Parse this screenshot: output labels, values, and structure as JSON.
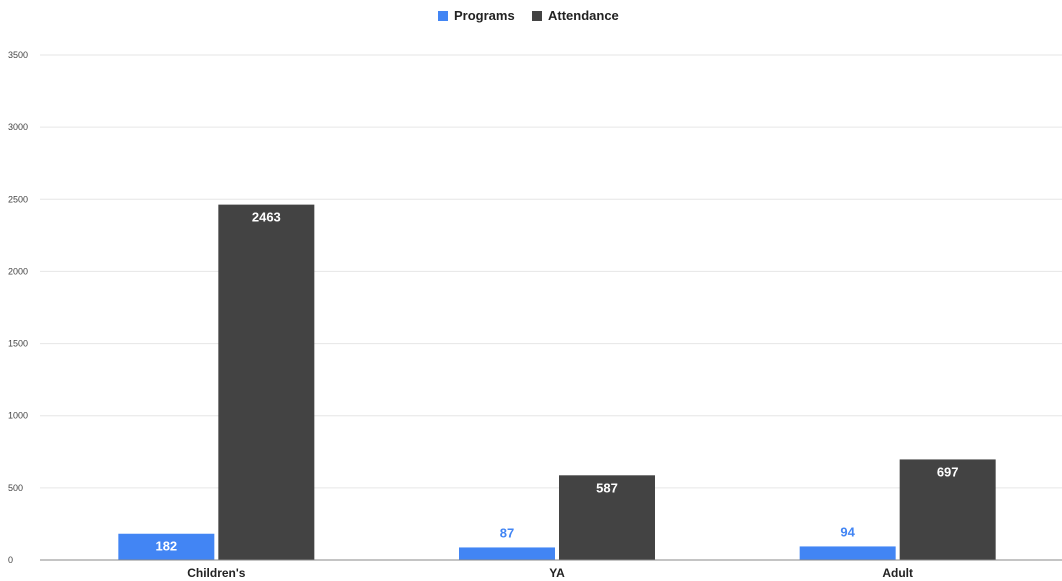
{
  "chart_data": {
    "type": "bar",
    "title": "",
    "xlabel": "",
    "ylabel": "",
    "categories": [
      "Children's",
      "YA",
      "Adult"
    ],
    "series": [
      {
        "name": "Programs",
        "values": [
          182,
          87,
          94
        ],
        "color": "#4285f4"
      },
      {
        "name": "Attendance",
        "values": [
          2463,
          587,
          697
        ],
        "color": "#434343"
      }
    ],
    "ylim": [
      0,
      3500
    ],
    "yticks": [
      0,
      500,
      1000,
      1500,
      2000,
      2500,
      3000,
      3500
    ],
    "grid": true,
    "legend_position": "top-center",
    "colors": {
      "grid": "#e6e6e6",
      "axis": "#888888",
      "inside_label": "#ffffff"
    }
  }
}
